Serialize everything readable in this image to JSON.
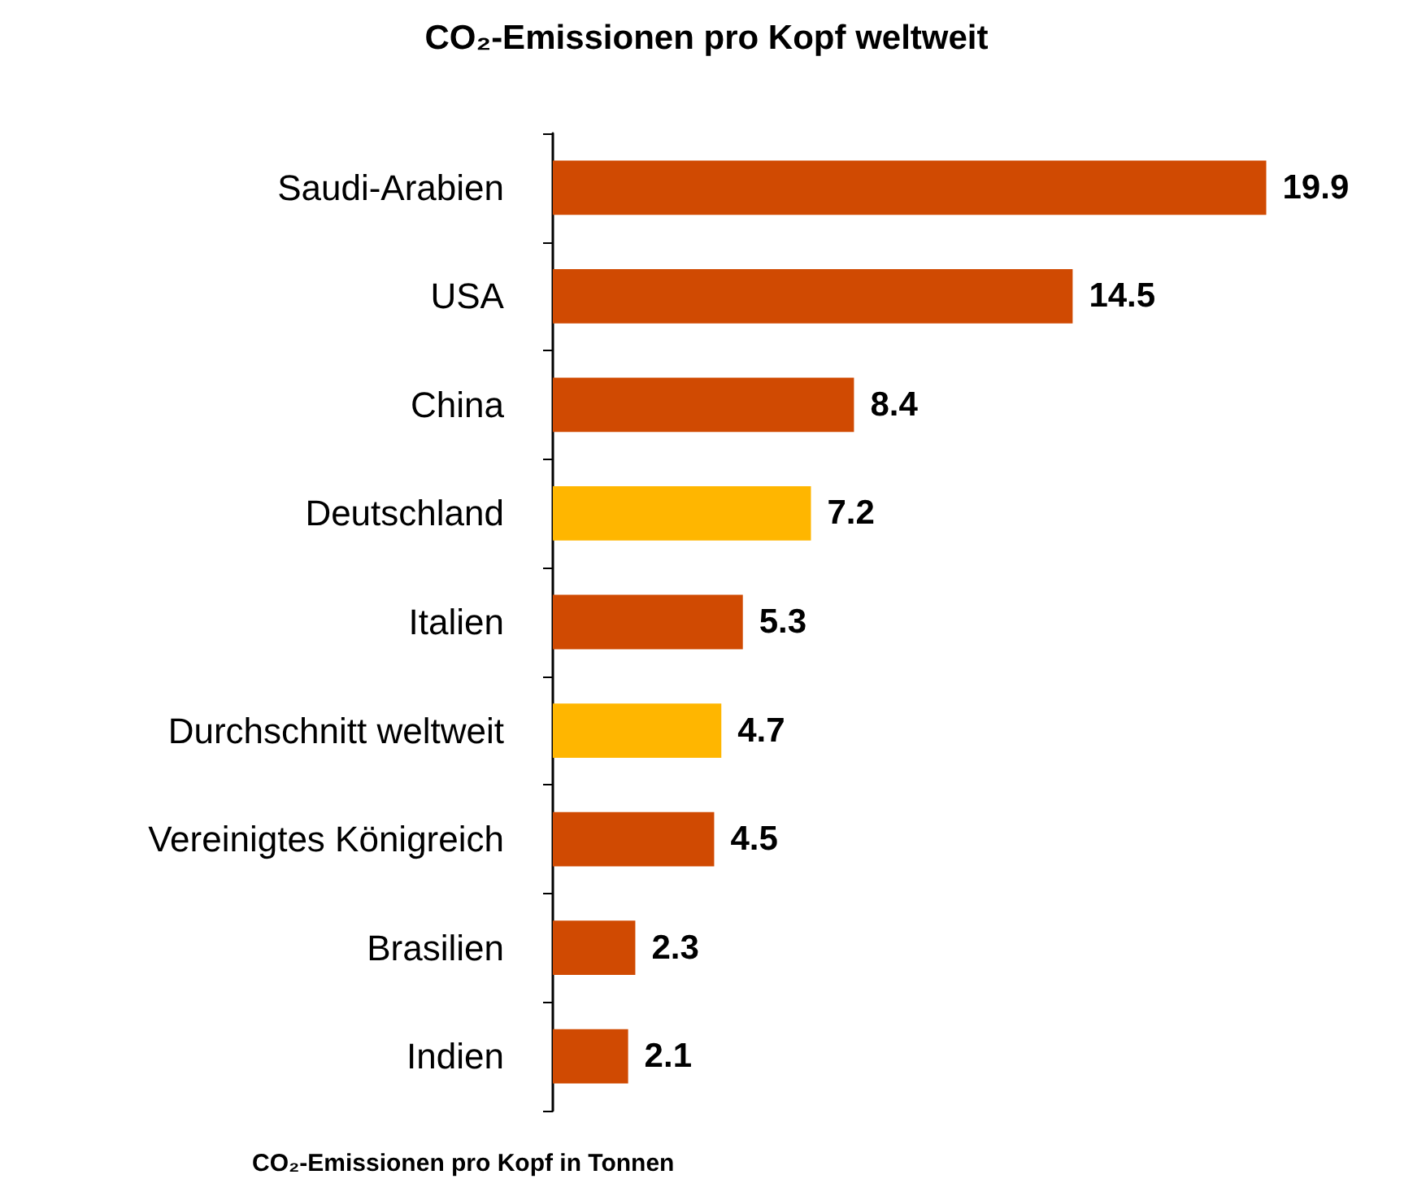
{
  "chart_data": {
    "type": "bar",
    "orientation": "horizontal",
    "title": "CO₂-Emissionen pro Kopf weltweit",
    "xlabel": "CO₂-Emissionen pro Kopf in Tonnen",
    "categories": [
      "Saudi-Arabien",
      "USA",
      "China",
      "Deutschland",
      "Italien",
      "Durchschnitt weltweit",
      "Vereinigtes Königreich",
      "Brasilien",
      "Indien"
    ],
    "values": [
      19.9,
      14.5,
      8.4,
      7.2,
      5.3,
      4.7,
      4.5,
      2.3,
      2.1
    ],
    "colors": [
      "#d04a02",
      "#d04a02",
      "#d04a02",
      "#ffb600",
      "#d04a02",
      "#ffb600",
      "#d04a02",
      "#d04a02",
      "#d04a02"
    ],
    "data_labels": true
  }
}
